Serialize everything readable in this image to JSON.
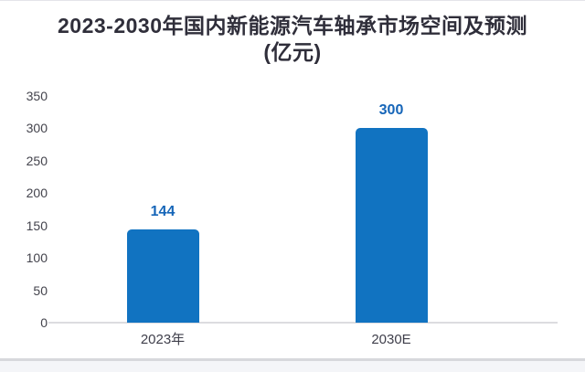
{
  "page": {
    "title_line1": "2023-2030年国内新能源汽车轴承市场空间及预测",
    "title_line2": "(亿元)"
  },
  "chart_data": {
    "type": "bar",
    "title": "2023-2030年国内新能源汽车轴承市场空间及预测(亿元)",
    "categories": [
      "2023年",
      "2030E"
    ],
    "values": [
      144,
      300
    ],
    "yticks": [
      0,
      50,
      100,
      150,
      200,
      250,
      300,
      350
    ],
    "ylim": [
      0,
      350
    ],
    "xlabel": "",
    "ylabel": "",
    "grid": false,
    "legend_position": "none",
    "data_labels_shown": true,
    "bar_color": "#1173c1",
    "value_label_color": "#1565b8",
    "axis_line_color": "#dcdce0",
    "tick_label_color": "#43434c"
  }
}
